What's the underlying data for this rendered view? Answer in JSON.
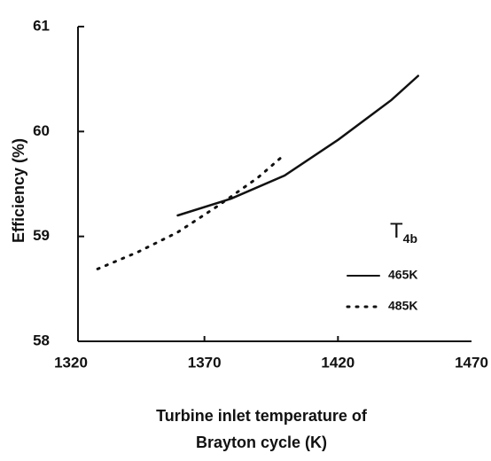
{
  "chart_data": {
    "type": "line",
    "xlabel": [
      "Turbine inlet temperature of",
      "Brayton cycle  (K)"
    ],
    "ylabel": "Efficiency (%)",
    "legend_title": {
      "main": "T",
      "subscript": "4b"
    },
    "xlim": [
      1320,
      1470
    ],
    "xticks": [
      1320,
      1370,
      1420,
      1470
    ],
    "ylim": [
      58,
      61
    ],
    "yticks": [
      58,
      59,
      60,
      61
    ],
    "legend": "right",
    "series": [
      {
        "name": "465K",
        "color": "#111111",
        "style": "solid",
        "x": [
          1360,
          1380,
          1400,
          1420,
          1440,
          1450
        ],
        "values": [
          59.2,
          59.36,
          59.58,
          59.92,
          60.3,
          60.53
        ]
      },
      {
        "name": "485K",
        "color": "#111111",
        "style": "dotted",
        "x": [
          1330,
          1345,
          1360,
          1375,
          1390,
          1400
        ],
        "values": [
          58.69,
          58.85,
          59.04,
          59.29,
          59.56,
          59.78
        ]
      }
    ]
  }
}
